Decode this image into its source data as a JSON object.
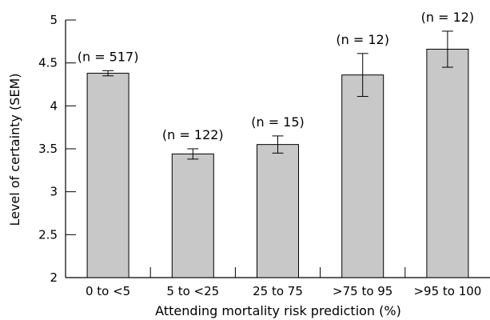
{
  "chart_data": {
    "type": "bar",
    "xlabel": "Attending mortality risk prediction (%)",
    "ylabel": "Level of certainty (SEM)",
    "ylim": [
      2,
      5
    ],
    "yticks": [
      "2",
      "2.5",
      "3",
      "3.5",
      "4",
      "4.5",
      "5"
    ],
    "categories": [
      "0 to <5",
      "5 to <25",
      "25 to 75",
      ">75 to 95",
      ">95 to 100"
    ],
    "values": [
      4.38,
      3.44,
      3.55,
      4.36,
      4.66
    ],
    "error": [
      0.03,
      0.06,
      0.1,
      0.25,
      0.21
    ],
    "labels": [
      "(n = 517)",
      "(n = 122)",
      "(n = 15)",
      "(n = 12)",
      "(n = 12)"
    ],
    "bar_color": "#c8c8c8",
    "grid": false
  }
}
